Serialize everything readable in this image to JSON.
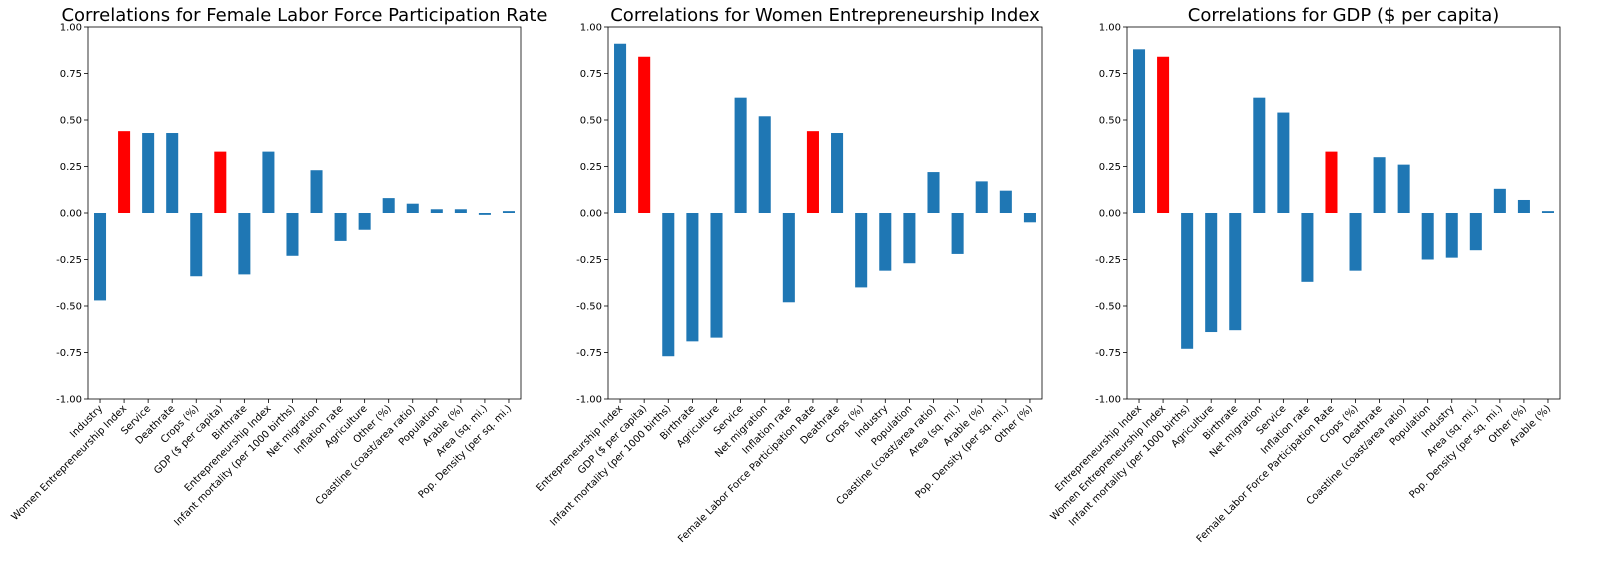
{
  "colors": {
    "default_bar": "#1f77b4",
    "highlight_bar": "#ff0000"
  },
  "chart_data": [
    {
      "type": "bar",
      "title": "Correlations for Female Labor Force Participation Rate",
      "categories": [
        "Industry",
        "Women Entrepreneurship Index",
        "Service",
        "Deathrate",
        "Crops (%)",
        "GDP ($ per capita)",
        "Birthrate",
        "Entrepreneurship Index",
        "Infant mortality (per 1000 births)",
        "Net migration",
        "Inflation rate",
        "Agriculture",
        "Other (%)",
        "Coastline (coast/area ratio)",
        "Population",
        "Arable (%)",
        "Area (sq. mi.)",
        "Pop. Density (per sq. mi.)"
      ],
      "values": [
        -0.47,
        0.44,
        0.43,
        0.43,
        -0.34,
        0.33,
        -0.33,
        0.33,
        -0.23,
        0.23,
        -0.15,
        -0.09,
        0.08,
        0.05,
        0.02,
        0.02,
        -0.01,
        0.01
      ],
      "highlighted": [
        1,
        5
      ],
      "ylim": [
        -1.0,
        1.0
      ],
      "yticks": [
        "-1.00",
        "-0.75",
        "-0.50",
        "-0.25",
        "0.00",
        "0.25",
        "0.50",
        "0.75",
        "1.00"
      ],
      "xlabel": "",
      "ylabel": ""
    },
    {
      "type": "bar",
      "title": "Correlations for Women Entrepreneurship Index",
      "categories": [
        "Entrepreneurship Index",
        "GDP ($ per capita)",
        "Infant mortality (per 1000 births)",
        "Birthrate",
        "Agriculture",
        "Service",
        "Net migration",
        "Inflation rate",
        "Female Labor Force Participation Rate",
        "Deathrate",
        "Crops (%)",
        "Industry",
        "Population",
        "Coastline (coast/area ratio)",
        "Area (sq. mi.)",
        "Arable (%)",
        "Pop. Density (per sq. mi.)",
        "Other (%)"
      ],
      "values": [
        0.91,
        0.84,
        -0.77,
        -0.69,
        -0.67,
        0.62,
        0.52,
        -0.48,
        0.44,
        0.43,
        -0.4,
        -0.31,
        -0.27,
        0.22,
        -0.22,
        0.17,
        0.12,
        -0.05
      ],
      "highlighted": [
        1,
        8
      ],
      "ylim": [
        -1.0,
        1.0
      ],
      "yticks": [
        "-1.00",
        "-0.75",
        "-0.50",
        "-0.25",
        "0.00",
        "0.25",
        "0.50",
        "0.75",
        "1.00"
      ],
      "xlabel": "",
      "ylabel": ""
    },
    {
      "type": "bar",
      "title": "Correlations for GDP ($ per capita)",
      "categories": [
        "Entrepreneurship Index",
        "Women Entrepreneurship Index",
        "Infant mortality (per 1000 births)",
        "Agriculture",
        "Birthrate",
        "Net migration",
        "Service",
        "Inflation rate",
        "Female Labor Force Participation Rate",
        "Crops (%)",
        "Deathrate",
        "Coastline (coast/area ratio)",
        "Population",
        "Industry",
        "Area (sq. mi.)",
        "Pop. Density (per sq. mi.)",
        "Other (%)",
        "Arable (%)"
      ],
      "values": [
        0.88,
        0.84,
        -0.73,
        -0.64,
        -0.63,
        0.62,
        0.54,
        -0.37,
        0.33,
        -0.31,
        0.3,
        0.26,
        -0.25,
        -0.24,
        -0.2,
        0.13,
        0.07,
        0.01
      ],
      "highlighted": [
        1,
        8
      ],
      "ylim": [
        -1.0,
        1.0
      ],
      "yticks": [
        "-1.00",
        "-0.75",
        "-0.50",
        "-0.25",
        "0.00",
        "0.25",
        "0.50",
        "0.75",
        "1.00"
      ],
      "xlabel": "",
      "ylabel": ""
    }
  ]
}
